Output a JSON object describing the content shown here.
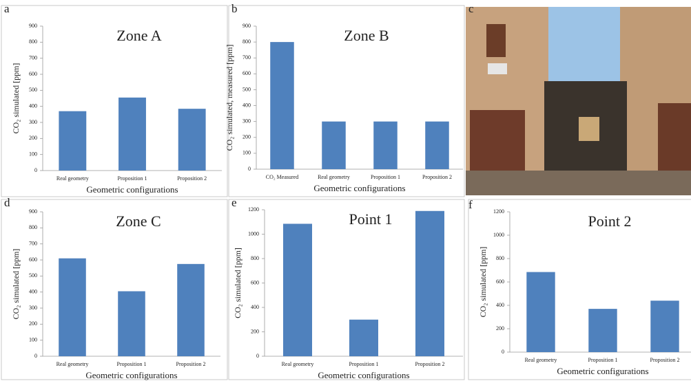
{
  "chart_data": [
    {
      "type": "bar",
      "panel": "a",
      "title": "Zone A",
      "y_label": "CO₂ simulated [ppm]",
      "x_label": "Geometric configurations",
      "categories": [
        "Real geometry",
        "Proposition 1",
        "Proposition 2"
      ],
      "values": [
        370,
        455,
        385
      ],
      "color": "#4f81bd",
      "ylim": [
        0,
        900
      ],
      "yticks": [
        0,
        100,
        200,
        300,
        400,
        500,
        600,
        700,
        800,
        900
      ]
    },
    {
      "type": "bar",
      "panel": "b",
      "title": "Zone B",
      "y_label": "CO₂ simulated, measured [ppm]",
      "x_label": "Geometric configurations",
      "categories": [
        "CO₂ Measured",
        "Real geometry",
        "Proposition 1",
        "Proposition 2"
      ],
      "values": [
        800,
        300,
        300,
        300
      ],
      "color": "#4f81bd",
      "ylim": [
        0,
        900
      ],
      "yticks": [
        0,
        100,
        200,
        300,
        400,
        500,
        600,
        700,
        800,
        900
      ]
    },
    {
      "type": "photo",
      "panel": "c"
    },
    {
      "type": "bar",
      "panel": "d",
      "title": "Zone C",
      "y_label": "CO₂ simulated [ppm]",
      "x_label": "Geometric configurations",
      "categories": [
        "Real geometry",
        "Proposition 1",
        "Proposition 2"
      ],
      "values": [
        610,
        405,
        575
      ],
      "color": "#4f81bd",
      "ylim": [
        0,
        900
      ],
      "yticks": [
        0,
        100,
        200,
        300,
        400,
        500,
        600,
        700,
        800,
        900
      ]
    },
    {
      "type": "bar",
      "panel": "e",
      "title": "Point 1",
      "y_label": "CO₂ simulated [ppm]",
      "x_label": "Geometric configurations",
      "categories": [
        "Real geometry",
        "Proposition 1",
        "Proposition 2"
      ],
      "values": [
        1085,
        300,
        1190
      ],
      "color": "#4f81bd",
      "ylim": [
        0,
        1200
      ],
      "yticks": [
        0,
        200,
        400,
        600,
        800,
        1000,
        1200
      ]
    },
    {
      "type": "bar",
      "panel": "f",
      "title": "Point 2",
      "y_label": "CO₂ simulated [ppm]",
      "x_label": "Geometric configurations",
      "categories": [
        "Real geometry",
        "Proposition 1",
        "Proposition 2"
      ],
      "values": [
        685,
        370,
        440
      ],
      "color": "#4f81bd",
      "ylim": [
        0,
        1200
      ],
      "yticks": [
        0,
        200,
        400,
        600,
        800,
        1000,
        1200
      ]
    }
  ]
}
